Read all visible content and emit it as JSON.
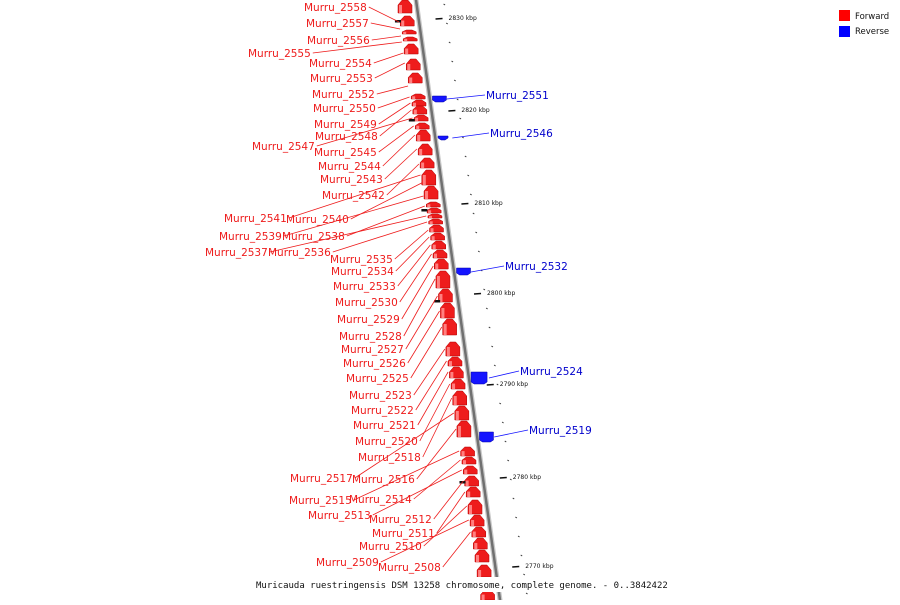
{
  "legend": {
    "forward_label": "Forward",
    "reverse_label": "Reverse",
    "forward_color": "#ff0000",
    "reverse_color": "#0000ff"
  },
  "caption": "Muricauda ruestringensis DSM 13258 chromosome, complete genome. - 0..3842422",
  "ticks": [
    "2830 kbp",
    "2820 kbp",
    "2810 kbp",
    "2800 kbp",
    "2790 kbp",
    "2780 kbp",
    "2770 kbp"
  ],
  "forward_genes": [
    "Murru_2558",
    "Murru_2557",
    "Murru_2556",
    "Murru_2555",
    "Murru_2554",
    "Murru_2553",
    "Murru_2552",
    "Murru_2550",
    "Murru_2549",
    "Murru_2548",
    "Murru_2547",
    "Murru_2545",
    "Murru_2544",
    "Murru_2543",
    "Murru_2542",
    "Murru_2541",
    "Murru_2540",
    "Murru_2539",
    "Murru_2538",
    "Murru_2537",
    "Murru_2536",
    "Murru_2535",
    "Murru_2534",
    "Murru_2533",
    "Murru_2530",
    "Murru_2529",
    "Murru_2528",
    "Murru_2527",
    "Murru_2526",
    "Murru_2525",
    "Murru_2523",
    "Murru_2522",
    "Murru_2521",
    "Murru_2520",
    "Murru_2518",
    "Murru_2517",
    "Murru_2516",
    "Murru_2515",
    "Murru_2514",
    "Murru_2513",
    "Murru_2512",
    "Murru_2511",
    "Murru_2510",
    "Murru_2509",
    "Murru_2508"
  ],
  "reverse_genes": [
    "Murru_2551",
    "Murru_2546",
    "Murru_2532",
    "Murru_2524",
    "Murru_2519"
  ]
}
